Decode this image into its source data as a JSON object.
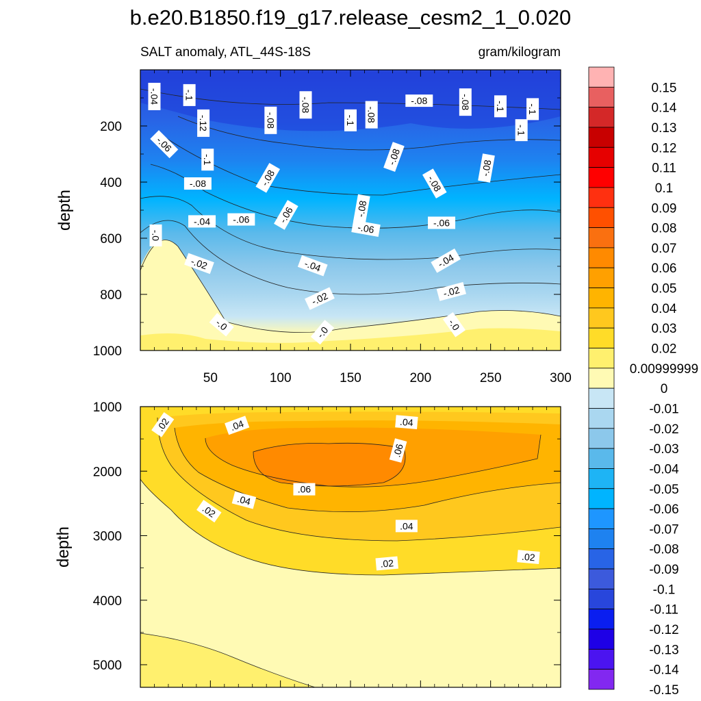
{
  "chart_data": {
    "type": "contour",
    "title": "b.e20.B1850.f19_g17.release_cesm2_1_0.020",
    "left_string": "SALT anomaly, ATL_44S-18S",
    "right_string": "gram/kilogram",
    "x_axis": {
      "range": [
        0,
        300
      ],
      "ticks": [
        50,
        100,
        150,
        200,
        250,
        300
      ],
      "tick_labels": [
        "50",
        "100",
        "150",
        "200",
        "250",
        "300"
      ]
    },
    "panels": [
      {
        "name": "upper",
        "ylabel": "depth",
        "depth_range": [
          0,
          1000
        ],
        "y_ticks": [
          200,
          400,
          600,
          800,
          1000
        ],
        "y_tick_labels": [
          "200",
          "400",
          "600",
          "800",
          "1000"
        ],
        "contour_labels": [
          {
            "text": "-.04",
            "x": 10,
            "depth": 95,
            "rotation": 90
          },
          {
            "text": "-.1",
            "x": 35,
            "depth": 90,
            "rotation": 90
          },
          {
            "text": "-.12",
            "x": 45,
            "depth": 190,
            "rotation": 90
          },
          {
            "text": "-.06",
            "x": 17,
            "depth": 265,
            "rotation": 45
          },
          {
            "text": "-.1",
            "x": 48,
            "depth": 320,
            "rotation": 90
          },
          {
            "text": "-.08",
            "x": 41,
            "depth": 405,
            "rotation": 0
          },
          {
            "text": "-.08",
            "x": 93,
            "depth": 180,
            "rotation": 90
          },
          {
            "text": "-.08",
            "x": 118,
            "depth": 125,
            "rotation": 90
          },
          {
            "text": "-.1",
            "x": 150,
            "depth": 180,
            "rotation": 90
          },
          {
            "text": "-.08",
            "x": 165,
            "depth": 160,
            "rotation": 90
          },
          {
            "text": "-.08",
            "x": 199,
            "depth": 110,
            "rotation": 0
          },
          {
            "text": "-.08",
            "x": 232,
            "depth": 115,
            "rotation": 90
          },
          {
            "text": "-.1",
            "x": 257,
            "depth": 130,
            "rotation": 90
          },
          {
            "text": "-.1",
            "x": 280,
            "depth": 140,
            "rotation": 90
          },
          {
            "text": "-.1",
            "x": 272,
            "depth": 215,
            "rotation": 90
          },
          {
            "text": "-.08",
            "x": 91,
            "depth": 385,
            "rotation": -60
          },
          {
            "text": "-.08",
            "x": 181,
            "depth": 310,
            "rotation": -70
          },
          {
            "text": "-.08",
            "x": 158,
            "depth": 495,
            "rotation": -80
          },
          {
            "text": "-.08",
            "x": 210,
            "depth": 405,
            "rotation": 60
          },
          {
            "text": "-.08",
            "x": 247,
            "depth": 350,
            "rotation": -80
          },
          {
            "text": "-.06",
            "x": 104,
            "depth": 517,
            "rotation": -60
          },
          {
            "text": "-.06",
            "x": 72,
            "depth": 533,
            "rotation": 0
          },
          {
            "text": "-.04",
            "x": 44,
            "depth": 540,
            "rotation": 0
          },
          {
            "text": "-.06",
            "x": 161,
            "depth": 565,
            "rotation": 10
          },
          {
            "text": "-.06",
            "x": 215,
            "depth": 545,
            "rotation": 0
          },
          {
            "text": "-.0",
            "x": 11,
            "depth": 590,
            "rotation": 90
          },
          {
            "text": "-.02",
            "x": 42,
            "depth": 690,
            "rotation": 20
          },
          {
            "text": "-.04",
            "x": 123,
            "depth": 698,
            "rotation": 20
          },
          {
            "text": "-.04",
            "x": 218,
            "depth": 680,
            "rotation": -30
          },
          {
            "text": "-.02",
            "x": 128,
            "depth": 815,
            "rotation": -25
          },
          {
            "text": "-.02",
            "x": 222,
            "depth": 790,
            "rotation": -15
          },
          {
            "text": "-.0",
            "x": 58,
            "depth": 908,
            "rotation": 40
          },
          {
            "text": "-.0",
            "x": 130,
            "depth": 935,
            "rotation": -50
          },
          {
            "text": "-.0",
            "x": 224,
            "depth": 908,
            "rotation": 55
          }
        ]
      },
      {
        "name": "lower",
        "ylabel": "depth",
        "depth_range": [
          1000,
          5350
        ],
        "y_ticks": [
          1000,
          2000,
          3000,
          4000,
          5000
        ],
        "y_tick_labels": [
          "1000",
          "2000",
          "3000",
          "4000",
          "5000"
        ],
        "contour_labels": [
          {
            "text": ".02",
            "x": 16,
            "depth": 1280,
            "rotation": -55
          },
          {
            "text": ".04",
            "x": 69,
            "depth": 1290,
            "rotation": -20
          },
          {
            "text": ".04",
            "x": 190,
            "depth": 1240,
            "rotation": 5
          },
          {
            "text": ".06",
            "x": 184,
            "depth": 1680,
            "rotation": -75
          },
          {
            "text": ".06",
            "x": 117,
            "depth": 2280,
            "rotation": 0
          },
          {
            "text": ".04",
            "x": 74,
            "depth": 2450,
            "rotation": 15
          },
          {
            "text": ".02",
            "x": 49,
            "depth": 2620,
            "rotation": 35
          },
          {
            "text": ".04",
            "x": 190,
            "depth": 2850,
            "rotation": 0
          },
          {
            "text": ".02",
            "x": 176,
            "depth": 3430,
            "rotation": -5
          },
          {
            "text": ".02",
            "x": 277,
            "depth": 3330,
            "rotation": 5
          }
        ]
      }
    ],
    "colorbar": {
      "levels": [
        "0.15",
        "0.14",
        "0.13",
        "0.12",
        "0.11",
        "0.1",
        "0.09",
        "0.08",
        "0.07",
        "0.06",
        "0.05",
        "0.04",
        "0.03",
        "0.02",
        "0.00999999",
        "0",
        "-0.01",
        "-0.02",
        "-0.03",
        "-0.04",
        "-0.05",
        "-0.06",
        "-0.07",
        "-0.08",
        "-0.09",
        "-0.1",
        "-0.11",
        "-0.12",
        "-0.13",
        "-0.14",
        "-0.15"
      ],
      "colors": [
        "#ffb3b3",
        "#e86060",
        "#d42828",
        "#c80000",
        "#e60000",
        "#ff0000",
        "#ff3010",
        "#ff5000",
        "#fa7010",
        "#ff8a00",
        "#ffa000",
        "#ffb400",
        "#ffc81e",
        "#ffdc28",
        "#fff06e",
        "#fffab4",
        "#c8e6f5",
        "#aad7f0",
        "#8cc8eb",
        "#5ab9eb",
        "#1eb4f5",
        "#00b4ff",
        "#1e96ff",
        "#1e82f0",
        "#2864e6",
        "#3c5adc",
        "#2846dc",
        "#0a1ef0",
        "#1e00e6",
        "#4b14f0",
        "#8228f0"
      ]
    }
  }
}
